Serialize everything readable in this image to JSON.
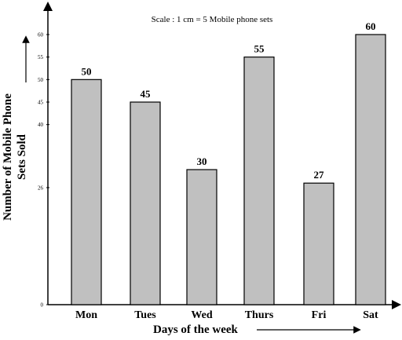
{
  "chart_data": {
    "type": "bar",
    "title": "Scale : 1 cm = 5 Mobile phone sets",
    "xlabel": "Days of the week",
    "ylabel_line1": "Number of Mobile Phone",
    "ylabel_line2": "Sets Sold",
    "categories": [
      "Mon",
      "Tues",
      "Wed",
      "Thurs",
      "Fri",
      "Sat"
    ],
    "values": [
      50,
      45,
      30,
      55,
      27,
      60
    ],
    "value_labels": [
      "50",
      "45",
      "30",
      "55",
      "27",
      "60"
    ],
    "yticks": [
      0,
      26,
      40,
      45,
      50,
      55,
      60
    ],
    "ytick_labels": [
      "0",
      "26",
      "40",
      "45",
      "50",
      "55",
      "60"
    ],
    "ylim": [
      0,
      60
    ],
    "grid": false,
    "colors": {
      "bar_fill": "#c0c0c0",
      "bar_stroke": "#000000",
      "axis": "#000000",
      "text": "#000000"
    }
  }
}
